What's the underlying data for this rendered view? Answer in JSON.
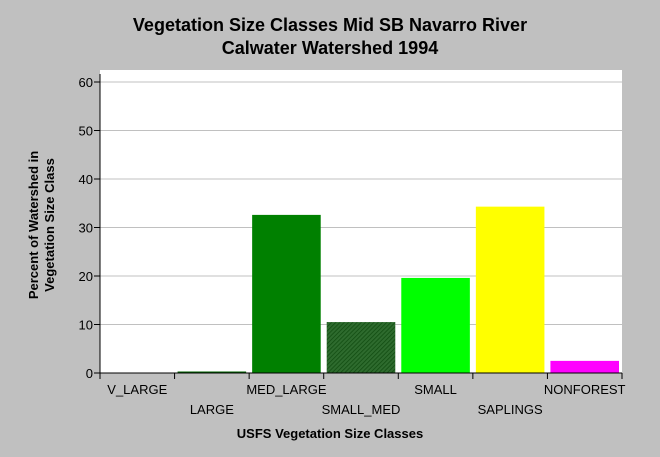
{
  "chart_data": {
    "type": "bar",
    "title_line1": "Vegetation Size Classes Mid SB Navarro River",
    "title_line2": "Calwater Watershed 1994",
    "xlabel": "USFS Vegetation Size Classes",
    "ylabel_line1": "Percent of Watershed in",
    "ylabel_line2": "Vegetation Size Class",
    "ylim": [
      0,
      60
    ],
    "yticks": [
      0,
      10,
      20,
      30,
      40,
      50,
      60
    ],
    "categories": [
      "V_LARGE",
      "LARGE",
      "MED_LARGE",
      "SMALL_MED",
      "SMALL",
      "SAPLINGS",
      "NONFOREST"
    ],
    "values": [
      0,
      0.2,
      32.6,
      10.5,
      19.6,
      34.3,
      2.5
    ],
    "colors": [
      "#006400",
      "#006400",
      "#008000",
      "#2e6b2e",
      "#00ff00",
      "#ffff00",
      "#ff00ff"
    ],
    "hatched": [
      false,
      false,
      false,
      true,
      false,
      false,
      false
    ],
    "background": "#c0c0c0",
    "plot_background": "#ffffff",
    "grid": "horizontal"
  }
}
